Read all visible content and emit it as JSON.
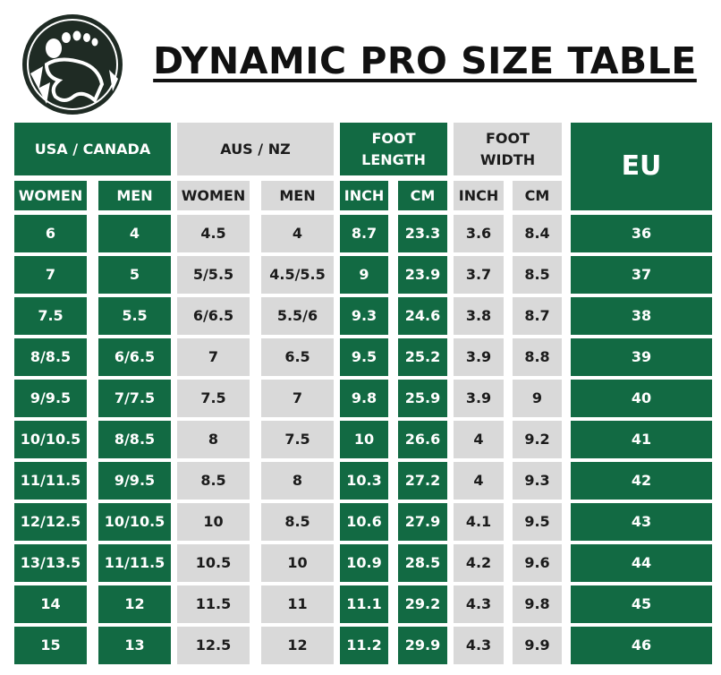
{
  "header": {
    "title": "DYNAMIC PRO SIZE TABLE"
  },
  "table": {
    "group_headers": [
      "USA / CANADA",
      "AUS / NZ",
      "FOOT\nLENGTH",
      "FOOT\nWIDTH",
      "EU"
    ],
    "subheaders": [
      "WOMEN",
      "MEN",
      "WOMEN",
      "MEN",
      "INCH",
      "CM",
      "INCH",
      "CM"
    ],
    "rows": [
      [
        "6",
        "4",
        "4.5",
        "4",
        "8.7",
        "23.3",
        "3.6",
        "8.4",
        "36"
      ],
      [
        "7",
        "5",
        "5/5.5",
        "4.5/5.5",
        "9",
        "23.9",
        "3.7",
        "8.5",
        "37"
      ],
      [
        "7.5",
        "5.5",
        "6/6.5",
        "5.5/6",
        "9.3",
        "24.6",
        "3.8",
        "8.7",
        "38"
      ],
      [
        "8/8.5",
        "6/6.5",
        "7",
        "6.5",
        "9.5",
        "25.2",
        "3.9",
        "8.8",
        "39"
      ],
      [
        "9/9.5",
        "7/7.5",
        "7.5",
        "7",
        "9.8",
        "25.9",
        "3.9",
        "9",
        "40"
      ],
      [
        "10/10.5",
        "8/8.5",
        "8",
        "7.5",
        "10",
        "26.6",
        "4",
        "9.2",
        "41"
      ],
      [
        "11/11.5",
        "9/9.5",
        "8.5",
        "8",
        "10.3",
        "27.2",
        "4",
        "9.3",
        "42"
      ],
      [
        "12/12.5",
        "10/10.5",
        "10",
        "8.5",
        "10.6",
        "27.9",
        "4.1",
        "9.5",
        "43"
      ],
      [
        "13/13.5",
        "11/11.5",
        "10.5",
        "10",
        "10.9",
        "28.5",
        "4.2",
        "9.6",
        "44"
      ],
      [
        "14",
        "12",
        "11.5",
        "11",
        "11.1",
        "29.2",
        "4.3",
        "9.8",
        "45"
      ],
      [
        "15",
        "13",
        "12.5",
        "12",
        "11.2",
        "29.9",
        "4.3",
        "9.9",
        "46"
      ]
    ]
  }
}
